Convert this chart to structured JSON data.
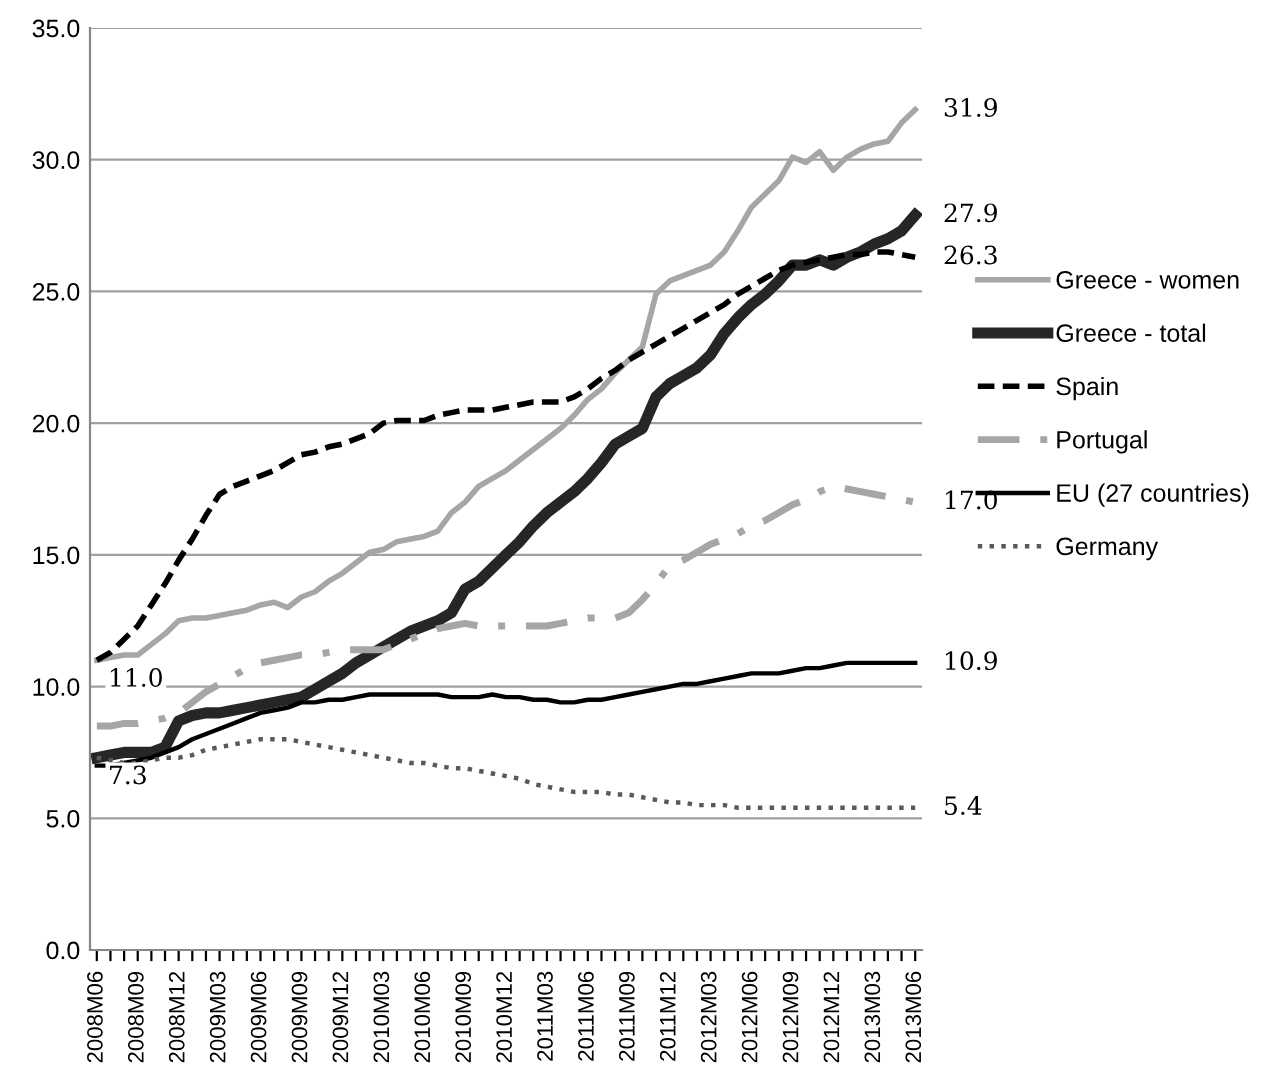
{
  "chart_data": {
    "type": "line",
    "categories": [
      "2008M06",
      null,
      null,
      "2008M09",
      null,
      null,
      "2008M12",
      null,
      null,
      "2009M03",
      null,
      null,
      "2009M06",
      null,
      null,
      "2009M09",
      null,
      null,
      "2009M12",
      null,
      null,
      "2010M03",
      null,
      null,
      "2010M06",
      null,
      null,
      "2010M09",
      null,
      null,
      "2010M12",
      null,
      null,
      "2011M03",
      null,
      null,
      "2011M06",
      null,
      null,
      "2011M09",
      null,
      null,
      "2011M12",
      null,
      null,
      "2012M03",
      null,
      null,
      "2012M06",
      null,
      null,
      "2012M09",
      null,
      null,
      "2012M12",
      null,
      null,
      "2013M03",
      null,
      null,
      "2013M06"
    ],
    "series": [
      {
        "name": "Greece - women",
        "color": "#a6a6a6",
        "line_style": "solid",
        "values": [
          11.0,
          11.1,
          11.2,
          11.2,
          11.6,
          12.0,
          12.5,
          12.6,
          12.6,
          12.7,
          12.8,
          12.9,
          13.1,
          13.2,
          13.0,
          13.4,
          13.6,
          14.0,
          14.3,
          14.7,
          15.1,
          15.2,
          15.5,
          15.6,
          15.7,
          15.9,
          16.6,
          17.0,
          17.6,
          17.9,
          18.2,
          18.6,
          19.0,
          19.4,
          19.8,
          20.3,
          20.9,
          21.3,
          21.9,
          22.4,
          22.9,
          24.9,
          25.4,
          25.6,
          25.8,
          26.0,
          26.5,
          27.3,
          28.2,
          28.7,
          29.2,
          30.1,
          29.9,
          30.3,
          29.6,
          30.1,
          30.4,
          30.6,
          30.7,
          31.4,
          31.9
        ],
        "value_labels": [
          null,
          null,
          null,
          null,
          null,
          null,
          null,
          null,
          null,
          null,
          null,
          null,
          null,
          null,
          null,
          null,
          null,
          null,
          null,
          null,
          null,
          null,
          null,
          null,
          null,
          null,
          null,
          null,
          null,
          null,
          null,
          null,
          null,
          null,
          null,
          null,
          null,
          null,
          null,
          null,
          null,
          null,
          null,
          null,
          null,
          null,
          null,
          null,
          null,
          null,
          null,
          null,
          null,
          null,
          null,
          null,
          null,
          null,
          null,
          null,
          "31.9"
        ]
      },
      {
        "name": "Greece - total",
        "color": "#262626",
        "line_style": "solid",
        "values": [
          7.3,
          7.4,
          7.5,
          7.5,
          7.5,
          7.7,
          8.7,
          8.9,
          9.0,
          9.0,
          9.1,
          9.2,
          9.3,
          9.4,
          9.5,
          9.6,
          9.9,
          10.2,
          10.5,
          10.9,
          11.2,
          11.5,
          11.8,
          12.1,
          12.3,
          12.5,
          12.8,
          13.7,
          14.0,
          14.5,
          15.0,
          15.5,
          16.1,
          16.6,
          17.0,
          17.4,
          17.9,
          18.5,
          19.2,
          19.5,
          19.8,
          21.0,
          21.5,
          21.8,
          22.1,
          22.6,
          23.4,
          24.0,
          24.5,
          24.9,
          25.4,
          26.0,
          26.0,
          26.2,
          26.0,
          26.3,
          26.5,
          26.8,
          27.0,
          27.3,
          27.9
        ],
        "value_labels": [
          "7.3",
          null,
          null,
          null,
          null,
          null,
          null,
          null,
          null,
          null,
          null,
          null,
          null,
          null,
          null,
          null,
          null,
          null,
          null,
          null,
          null,
          null,
          null,
          null,
          null,
          null,
          null,
          null,
          null,
          null,
          null,
          null,
          null,
          null,
          null,
          null,
          null,
          null,
          null,
          null,
          null,
          null,
          null,
          null,
          null,
          null,
          null,
          null,
          null,
          null,
          null,
          null,
          null,
          null,
          null,
          null,
          null,
          null,
          null,
          null,
          "27.9"
        ]
      },
      {
        "name": "Spain",
        "color": "#000000",
        "line_style": "dashed",
        "values": [
          11.0,
          11.3,
          11.8,
          12.3,
          13.1,
          13.9,
          14.8,
          15.6,
          16.5,
          17.3,
          17.6,
          17.8,
          18.0,
          18.2,
          18.5,
          18.8,
          18.9,
          19.1,
          19.2,
          19.4,
          19.6,
          20.0,
          20.1,
          20.1,
          20.1,
          20.3,
          20.4,
          20.5,
          20.5,
          20.5,
          20.6,
          20.7,
          20.8,
          20.8,
          20.8,
          21.0,
          21.3,
          21.7,
          22.0,
          22.4,
          22.7,
          23.0,
          23.3,
          23.6,
          23.9,
          24.2,
          24.5,
          24.9,
          25.2,
          25.5,
          25.8,
          26.0,
          26.1,
          26.2,
          26.3,
          26.4,
          26.4,
          26.5,
          26.5,
          26.4,
          26.3
        ],
        "value_labels": [
          "11.0",
          null,
          null,
          null,
          null,
          null,
          null,
          null,
          null,
          null,
          null,
          null,
          null,
          null,
          null,
          null,
          null,
          null,
          null,
          null,
          null,
          null,
          null,
          null,
          null,
          null,
          null,
          null,
          null,
          null,
          null,
          null,
          null,
          null,
          null,
          null,
          null,
          null,
          null,
          null,
          null,
          null,
          null,
          null,
          null,
          null,
          null,
          null,
          null,
          null,
          null,
          null,
          null,
          null,
          null,
          null,
          null,
          null,
          null,
          null,
          "26.3"
        ]
      },
      {
        "name": "Portugal",
        "color": "#a6a6a6",
        "line_style": "dashdot",
        "values": [
          8.5,
          8.5,
          8.6,
          8.6,
          8.7,
          8.8,
          9.0,
          9.4,
          9.8,
          10.1,
          10.4,
          10.7,
          10.9,
          11.0,
          11.1,
          11.2,
          11.2,
          11.3,
          11.4,
          11.4,
          11.4,
          11.4,
          11.6,
          11.8,
          12.0,
          12.2,
          12.3,
          12.4,
          12.3,
          12.3,
          12.3,
          12.3,
          12.3,
          12.3,
          12.4,
          12.5,
          12.6,
          12.6,
          12.6,
          12.8,
          13.3,
          13.9,
          14.6,
          14.8,
          15.1,
          15.4,
          15.6,
          15.8,
          16.1,
          16.3,
          16.6,
          16.9,
          17.1,
          17.4,
          17.6,
          17.5,
          17.4,
          17.3,
          17.2,
          17.1,
          17.0
        ],
        "value_labels": [
          null,
          null,
          null,
          null,
          null,
          null,
          null,
          null,
          null,
          null,
          null,
          null,
          null,
          null,
          null,
          null,
          null,
          null,
          null,
          null,
          null,
          null,
          null,
          null,
          null,
          null,
          null,
          null,
          null,
          null,
          null,
          null,
          null,
          null,
          null,
          null,
          null,
          null,
          null,
          null,
          null,
          null,
          null,
          null,
          null,
          null,
          null,
          null,
          null,
          null,
          null,
          null,
          null,
          null,
          null,
          null,
          null,
          null,
          null,
          null,
          "17.0"
        ]
      },
      {
        "name": "EU (27 countries)",
        "color": "#000000",
        "line_style": "solid",
        "values": [
          7.0,
          7.0,
          7.1,
          7.2,
          7.3,
          7.5,
          7.7,
          8.0,
          8.2,
          8.4,
          8.6,
          8.8,
          9.0,
          9.1,
          9.2,
          9.4,
          9.4,
          9.5,
          9.5,
          9.6,
          9.7,
          9.7,
          9.7,
          9.7,
          9.7,
          9.7,
          9.6,
          9.6,
          9.6,
          9.7,
          9.6,
          9.6,
          9.5,
          9.5,
          9.4,
          9.4,
          9.5,
          9.5,
          9.6,
          9.7,
          9.8,
          9.9,
          10.0,
          10.1,
          10.1,
          10.2,
          10.3,
          10.4,
          10.5,
          10.5,
          10.5,
          10.6,
          10.7,
          10.7,
          10.8,
          10.9,
          10.9,
          10.9,
          10.9,
          10.9,
          10.9
        ],
        "value_labels": [
          null,
          null,
          null,
          null,
          null,
          null,
          null,
          null,
          null,
          null,
          null,
          null,
          null,
          null,
          null,
          null,
          null,
          null,
          null,
          null,
          null,
          null,
          null,
          null,
          null,
          null,
          null,
          null,
          null,
          null,
          null,
          null,
          null,
          null,
          null,
          null,
          null,
          null,
          null,
          null,
          null,
          null,
          null,
          null,
          null,
          null,
          null,
          null,
          null,
          null,
          null,
          null,
          null,
          null,
          null,
          null,
          null,
          null,
          null,
          null,
          "10.9"
        ]
      },
      {
        "name": "Germany",
        "color": "#595959",
        "line_style": "dotted",
        "values": [
          7.3,
          7.2,
          7.1,
          7.1,
          7.2,
          7.3,
          7.3,
          7.4,
          7.6,
          7.7,
          7.8,
          7.9,
          8.0,
          8.0,
          8.0,
          7.9,
          7.8,
          7.7,
          7.6,
          7.5,
          7.4,
          7.3,
          7.2,
          7.1,
          7.1,
          7.0,
          6.9,
          6.9,
          6.8,
          6.7,
          6.6,
          6.5,
          6.3,
          6.2,
          6.1,
          6.0,
          6.0,
          6.0,
          5.9,
          5.9,
          5.8,
          5.7,
          5.6,
          5.6,
          5.5,
          5.5,
          5.5,
          5.4,
          5.4,
          5.4,
          5.4,
          5.4,
          5.4,
          5.4,
          5.4,
          5.4,
          5.4,
          5.4,
          5.4,
          5.4,
          5.4
        ],
        "value_labels": [
          null,
          null,
          null,
          null,
          null,
          null,
          null,
          null,
          null,
          null,
          null,
          null,
          null,
          null,
          null,
          null,
          null,
          null,
          null,
          null,
          null,
          null,
          null,
          null,
          null,
          null,
          null,
          null,
          null,
          null,
          null,
          null,
          null,
          null,
          null,
          null,
          null,
          null,
          null,
          null,
          null,
          null,
          null,
          null,
          null,
          null,
          null,
          null,
          null,
          null,
          null,
          null,
          null,
          null,
          null,
          null,
          null,
          null,
          null,
          null,
          "5.4"
        ]
      }
    ],
    "ylim": [
      0,
      35
    ],
    "yticks": [
      {
        "value": 0,
        "label": "0.0"
      },
      {
        "value": 5,
        "label": "5.0"
      },
      {
        "value": 10,
        "label": "10.0"
      },
      {
        "value": 15,
        "label": "15.0"
      },
      {
        "value": 20,
        "label": "20.0"
      },
      {
        "value": 25,
        "label": "25.0"
      },
      {
        "value": 30,
        "label": "30.0"
      },
      {
        "value": 35,
        "label": "35.0"
      }
    ],
    "grid": "y",
    "legend": "right",
    "marker": "none"
  }
}
